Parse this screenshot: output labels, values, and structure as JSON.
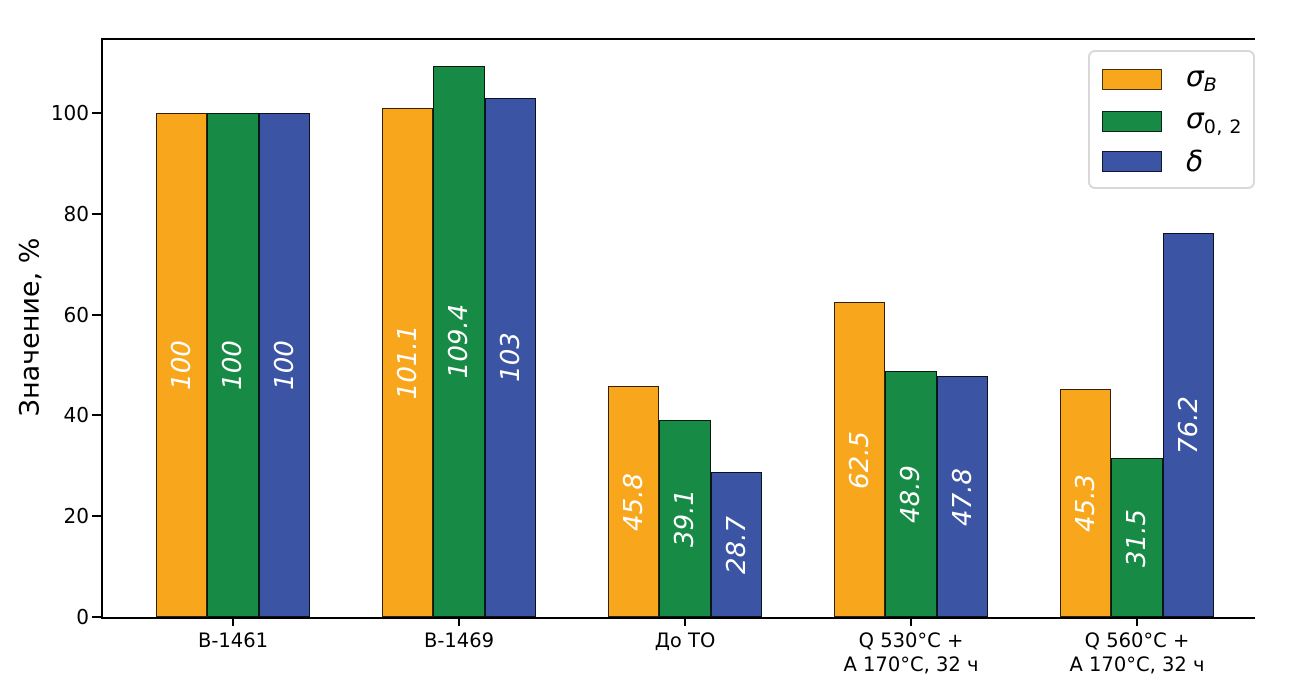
{
  "figure": {
    "background": "#ffffff"
  },
  "chart_data": {
    "type": "bar",
    "title": "",
    "xlabel": "",
    "ylabel": "Значение, %",
    "categories": [
      "В-1461",
      "В-1469",
      "До ТО",
      "Q 530°C +\nА 170°C, 32 ч",
      "Q 560°C +\nА 170°C, 32 ч"
    ],
    "series": [
      {
        "name": "σB",
        "color": "#F8A71D",
        "values": [
          100,
          101.1,
          45.8,
          62.5,
          45.3
        ],
        "labels": [
          "100",
          "101.1",
          "45.8",
          "62.5",
          "45.3"
        ],
        "legend": {
          "base": "σ",
          "sub": "B",
          "sub_italic": true
        }
      },
      {
        "name": "σ0,2",
        "color": "#178A45",
        "values": [
          100,
          109.4,
          39.1,
          48.9,
          31.5
        ],
        "labels": [
          "100",
          "109.4",
          "39.1",
          "48.9",
          "31.5"
        ],
        "legend": {
          "base": "σ",
          "sub": "0, 2",
          "sub_italic": false
        }
      },
      {
        "name": "δ",
        "color": "#3B54A4",
        "values": [
          100,
          103,
          28.7,
          47.8,
          76.2
        ],
        "labels": [
          "100",
          "103",
          "28.7",
          "47.8",
          "76.2"
        ],
        "legend": {
          "base": "δ",
          "sub": "",
          "sub_italic": false
        }
      }
    ],
    "yticks": [
      0,
      20,
      40,
      60,
      80,
      100
    ],
    "ylim": [
      0,
      114.5
    ],
    "grid": false,
    "legend_position": "upper right",
    "bar_edge_color": "rgba(0,0,0,0.8)",
    "value_label_color": "#ffffff",
    "spines": {
      "top": true,
      "left": true,
      "bottom": true,
      "right": false
    }
  }
}
